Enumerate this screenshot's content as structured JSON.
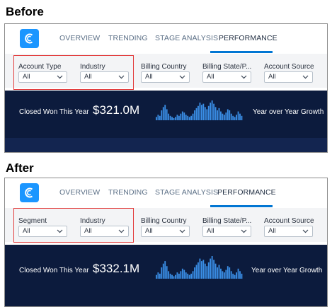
{
  "before": {
    "section_label": "Before",
    "tabs": [
      {
        "label": "OVERVIEW",
        "active": false
      },
      {
        "label": "TRENDING",
        "active": false
      },
      {
        "label": "STAGE ANALYSIS",
        "active": false
      },
      {
        "label": "PERFORMANCE",
        "active": true
      }
    ],
    "filters": [
      {
        "label": "Account Type",
        "value": "All"
      },
      {
        "label": "Industry",
        "value": "All"
      },
      {
        "label": "Billing Country",
        "value": "All"
      },
      {
        "label": "Billing State/P...",
        "value": "All"
      },
      {
        "label": "Account Source",
        "value": "All"
      }
    ],
    "kpi": {
      "label": "Closed Won This Year",
      "value": "$321.0M",
      "right_label": "Year over Year Growth"
    }
  },
  "after": {
    "section_label": "After",
    "tabs": [
      {
        "label": "OVERVIEW",
        "active": false
      },
      {
        "label": "TRENDING",
        "active": false
      },
      {
        "label": "STAGE ANALYSIS",
        "active": false
      },
      {
        "label": "PERFORMANCE",
        "active": true
      }
    ],
    "filters": [
      {
        "label": "Segment",
        "value": "All"
      },
      {
        "label": "Industry",
        "value": "All"
      },
      {
        "label": "Billing Country",
        "value": "All"
      },
      {
        "label": "Billing State/P...",
        "value": "All"
      },
      {
        "label": "Account Source",
        "value": "All"
      }
    ],
    "kpi": {
      "label": "Closed Won This Year",
      "value": "$332.1M",
      "right_label": "Year over Year Growth"
    }
  },
  "colors": {
    "brand_blue": "#1b96ff",
    "active_tab_underline": "#0176d3",
    "highlight_red": "#e23a3a",
    "kpi_background": "#0c1b3d",
    "sparkline_bar": "#3a8ee6"
  },
  "icons": {
    "logo": "app-logo-icon",
    "dropdown": "chevron-down-icon"
  }
}
